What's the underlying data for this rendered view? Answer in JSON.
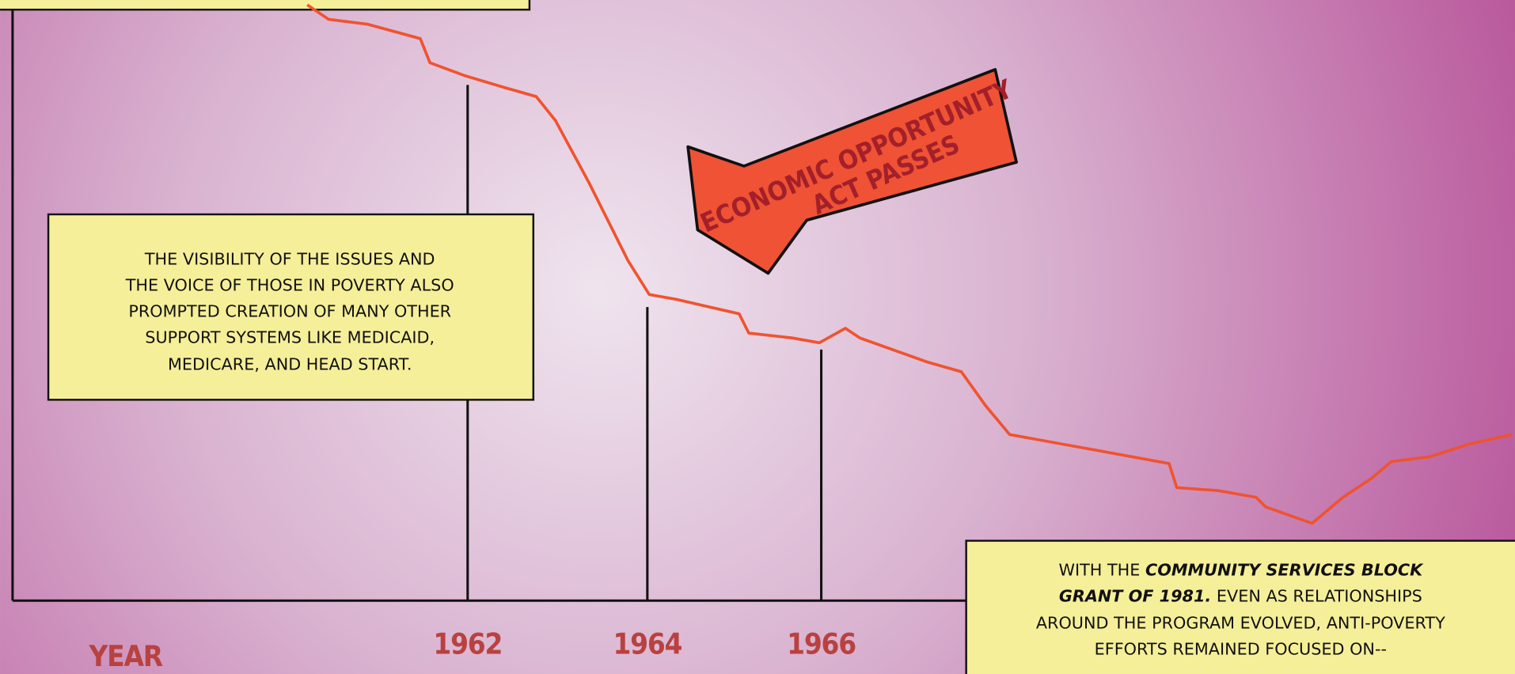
{
  "year_label": "YEAR",
  "year_ticks": [
    "1962",
    "1964",
    "1966"
  ],
  "arrow": {
    "lines": [
      "ECONOMIC OPPORTUNITY",
      "ACT PASSES"
    ]
  },
  "caption_1": {
    "lines": [
      "THE VISIBILITY OF THE ISSUES AND",
      "THE VOICE OF THOSE IN POVERTY ALSO",
      "PROMPTED CREATION OF MANY OTHER",
      "SUPPORT SYSTEMS LIKE MEDICAID,",
      "MEDICARE, AND HEAD START."
    ]
  },
  "caption_2": {
    "lines": [
      [
        "WITH THE ",
        "COMMUNITY SERVICES BLOCK"
      ],
      [
        "GRANT OF 1981.",
        " EVEN AS RELATIONSHIPS"
      ],
      [
        "AROUND THE PROGRAM EVOLVED, ANTI-POVERTY"
      ],
      [
        "EFFORTS REMAINED FOCUSED ON--"
      ]
    ]
  }
}
